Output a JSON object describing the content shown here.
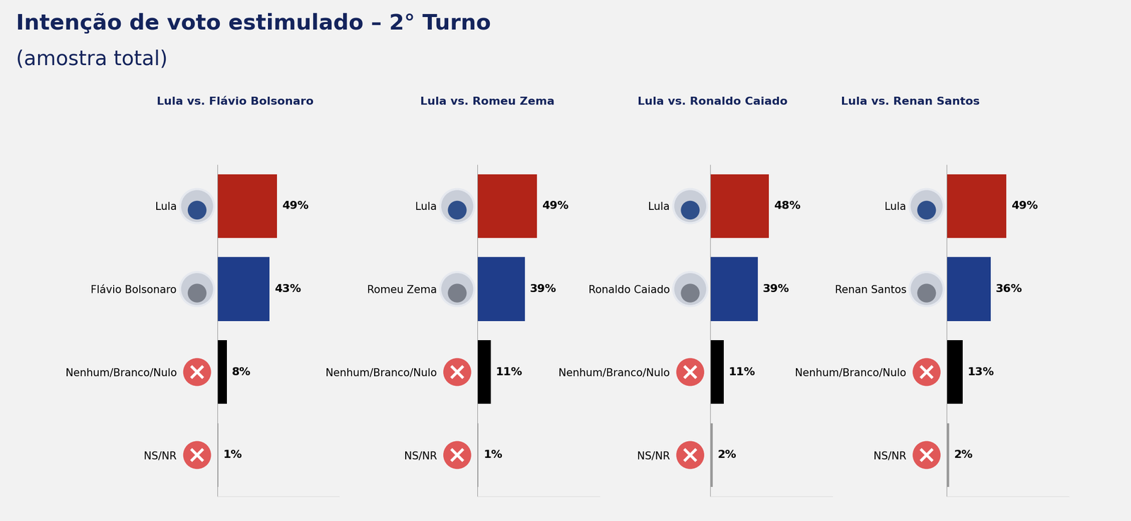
{
  "header": {
    "title": "Intenção de voto estimulado – 2° Turno",
    "subtitle": "(amostra total)"
  },
  "chart_data": [
    {
      "type": "bar",
      "orientation": "horizontal",
      "title": "Lula vs. Flávio Bolsonaro",
      "categories": [
        "Lula",
        "Flávio Bolsonaro",
        "Nenhum/Branco/Nulo",
        "NS/NR"
      ],
      "values": [
        49,
        43,
        8,
        1
      ],
      "value_labels": [
        "49%",
        "43%",
        "8%",
        "1%"
      ],
      "colors": [
        "#b22418",
        "#1f3d8a",
        "#000000",
        "#9a9a9a"
      ],
      "xlim": [
        0,
        100
      ],
      "data_labels": true,
      "tick_labels": "y"
    },
    {
      "type": "bar",
      "orientation": "horizontal",
      "title": "Lula vs. Romeu Zema",
      "categories": [
        "Lula",
        "Romeu Zema",
        "Nenhum/Branco/Nulo",
        "NS/NR"
      ],
      "values": [
        49,
        39,
        11,
        1
      ],
      "value_labels": [
        "49%",
        "39%",
        "11%",
        "1%"
      ],
      "colors": [
        "#b22418",
        "#1f3d8a",
        "#000000",
        "#9a9a9a"
      ],
      "xlim": [
        0,
        100
      ],
      "data_labels": true,
      "tick_labels": "y"
    },
    {
      "type": "bar",
      "orientation": "horizontal",
      "title": "Lula vs. Ronaldo Caiado",
      "categories": [
        "Lula",
        "Ronaldo Caiado",
        "Nenhum/Branco/Nulo",
        "NS/NR"
      ],
      "values": [
        48,
        39,
        11,
        2
      ],
      "value_labels": [
        "48%",
        "39%",
        "11%",
        "2%"
      ],
      "colors": [
        "#b22418",
        "#1f3d8a",
        "#000000",
        "#9a9a9a"
      ],
      "xlim": [
        0,
        100
      ],
      "data_labels": true,
      "tick_labels": "y"
    },
    {
      "type": "bar",
      "orientation": "horizontal",
      "title": "Lula vs. Renan Santos",
      "categories": [
        "Lula",
        "Renan Santos",
        "Nenhum/Branco/Nulo",
        "NS/NR"
      ],
      "values": [
        49,
        36,
        13,
        2
      ],
      "value_labels": [
        "49%",
        "36%",
        "13%",
        "2%"
      ],
      "colors": [
        "#b22418",
        "#1f3d8a",
        "#000000",
        "#9a9a9a"
      ],
      "xlim": [
        0,
        100
      ],
      "data_labels": true,
      "tick_labels": "y"
    }
  ]
}
